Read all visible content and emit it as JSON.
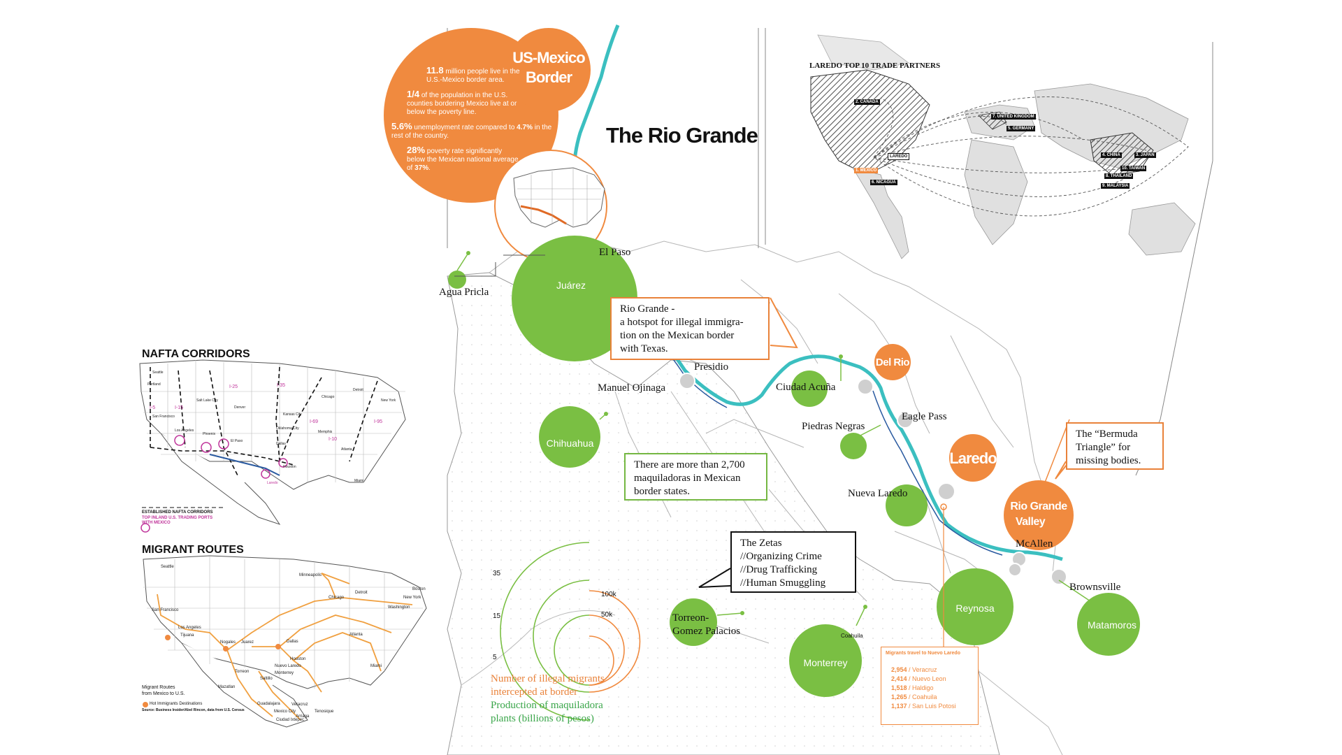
{
  "title": "The Rio Grande",
  "header_circle": {
    "line1": "US-Mexico",
    "line2": "Border"
  },
  "stats": [
    {
      "num": "11.8",
      "text": " million people live in the U.S.-Mexico border area."
    },
    {
      "num": "1/4",
      "text": " of the population in the U.S. counties bordering Mexico live at or below the poverty line."
    },
    {
      "num": "5.6%",
      "text": " unemployment rate compared to ",
      "num2": "4.7%",
      "text2": " in the rest of the country."
    },
    {
      "num": "28%",
      "text": " poverty rate significantly below the Mexican national average of ",
      "num2": "37%",
      "text2": "."
    }
  ],
  "cities": {
    "el_paso": "El Paso",
    "juarez": "Juárez",
    "agua_pricla": "Agua Pricla",
    "presidio": "Presidio",
    "manuel_ojinaga": "Manuel Ojinaga",
    "ciudad_acuna": "Ciudad Acuña",
    "del_rio": "Del Rio",
    "piedras_negras": "Piedras Negras",
    "eagle_pass": "Eagle Pass",
    "laredo": "Laredo",
    "nueva_laredo": "Nueva Laredo",
    "rio_grande_valley_1": "Rio Grande",
    "rio_grande_valley_2": "Valley",
    "mcallen": "McAllen",
    "brownsville": "Brownsville",
    "reynosa": "Reynosa",
    "matamoros": "Matamoros",
    "chihuahua": "Chihuahua",
    "monterrey": "Monterrey",
    "torreon_1": "Torreon-",
    "torreon_2": "Gomez Palacios",
    "coahuila": "Coahuila"
  },
  "callouts": {
    "rio_grande": [
      "Rio Grande -",
      "a hotspot for illegal immigra-",
      "tion on the Mexican border",
      "with Texas."
    ],
    "maquiladoras": [
      "There are more than 2,700",
      "maquiladoras in Mexican",
      "border states."
    ],
    "zetas": [
      "The Zetas",
      "//Organizing Crime",
      "//Drug Trafficking",
      "//Human Smuggling"
    ],
    "bermuda": [
      "The “Bermuda",
      "Triangle” for",
      "missing bodies."
    ]
  },
  "legend": {
    "ticks_left": [
      "35",
      "15",
      "5"
    ],
    "ticks_right": [
      "100k",
      "50k"
    ],
    "line_orange_1": "Number of illegal migrants",
    "line_orange_2": "intercepted at border",
    "line_green_1": "Production of maquiladora",
    "line_green_2": "plants (billions of pesos)"
  },
  "migrants_box": {
    "title": "Migrants travel to Nuevo Laredo",
    "rows": [
      {
        "num": "2,954",
        "place": " / Veracruz"
      },
      {
        "num": "2,414",
        "place": " / Nuevo Leon"
      },
      {
        "num": "1,518",
        "place": " / Haldigo"
      },
      {
        "num": "1,265",
        "place": " / Coahuila"
      },
      {
        "num": "1,137",
        "place": " / San Luis Potosi"
      }
    ]
  },
  "trade": {
    "title": "LAREDO TOP 10 TRADE PARTNERS",
    "partners": [
      "2. CANADA",
      "7. UNITED KINGDOM",
      "5. GERMANY",
      "4. CHINA",
      "3. JAPAN",
      "10. TAIWAN",
      "8. THAILAND",
      "9. MALAYSIA",
      "1. MEXICO",
      "6. NICAGUA",
      "LAREDO"
    ]
  },
  "nafta": {
    "title": "NAFTA  CORRIDORS",
    "legend1": "ESTABLISHED NAFTA CORRIDORS",
    "legend2a": "TOP INLAND U.S. TRADING PORTS",
    "legend2b": "WITH MEXICO",
    "routes": [
      "I-5",
      "I-15",
      "I-25",
      "I-35",
      "I-69",
      "I-95",
      "I-10"
    ],
    "cities": [
      "Seattle",
      "Portland",
      "San Francisco",
      "Los Angeles",
      "Salt Lake City",
      "Denver",
      "Phoenix",
      "El Paso",
      "Dallas",
      "Houston",
      "Chicago",
      "Detroit",
      "Kansas City",
      "Oklahoma City",
      "Memphis",
      "Atlanta",
      "Miami",
      "New York",
      "Laredo"
    ]
  },
  "migrant_routes": {
    "title": "MIGRANT  ROUTES",
    "cities": [
      "Seattle",
      "Minneapolis",
      "Detroit",
      "Boston",
      "Chicago",
      "New York",
      "San Francisco",
      "Washington",
      "Los Angeles",
      "Tijuana",
      "Nogales",
      "Juarez",
      "Dallas",
      "Atlanta",
      "Houston",
      "Nuevo Laredo",
      "Monterrey",
      "Torreon",
      "Saltillo",
      "Miami",
      "Mazatlan",
      "Guadalajara",
      "Mexico City",
      "Veracruz",
      "Arriaga",
      "Tenosique",
      "Ciudad Ixtepec"
    ],
    "legend1": "Migrant Routes",
    "legend2": "from Mexico to U.S.",
    "legend3": "Hot Immigrants Destinations",
    "source": "Source: Business Insider/Abel Rincon, data from U.S. Census"
  },
  "colors": {
    "orange": "#f08a3f",
    "green": "#7abf43",
    "river": "#3bbfc0",
    "grey": "#cfcfcf"
  }
}
